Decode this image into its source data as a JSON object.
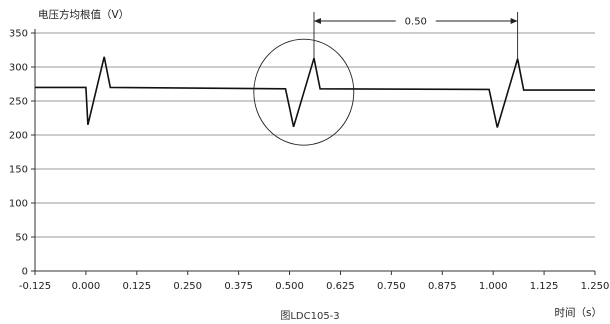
{
  "chart_data": {
    "type": "line",
    "ylabel": "电压方均根值（V）",
    "xlabel": "时间（s）",
    "caption": "图LDC105-3",
    "xlim": [
      -0.125,
      1.25
    ],
    "ylim": [
      0,
      350
    ],
    "x_ticks": [
      -0.125,
      0.0,
      0.125,
      0.25,
      0.375,
      0.5,
      0.625,
      0.75,
      0.875,
      1.0,
      1.125,
      1.25
    ],
    "x_tick_labels": [
      "-0.125",
      "0.000",
      "0.125",
      "0.250",
      "0.375",
      "0.500",
      "0.625",
      "0.750",
      "0.875",
      "1.000",
      "1.125",
      "1.250"
    ],
    "y_ticks": [
      0,
      50,
      100,
      150,
      200,
      250,
      300,
      350
    ],
    "y_tick_labels": [
      "0",
      "50",
      "100",
      "150",
      "200",
      "250",
      "300",
      "350"
    ],
    "grid": "horizontal",
    "series": [
      {
        "color": "#111111",
        "x": [
          -0.125,
          0.0,
          0.005,
          0.045,
          0.06,
          0.49,
          0.51,
          0.56,
          0.575,
          0.99,
          1.01,
          1.06,
          1.075,
          1.25
        ],
        "y": [
          270,
          270,
          215,
          315,
          270,
          268,
          212,
          313,
          268,
          267,
          211,
          312,
          266,
          266
        ]
      }
    ],
    "annotation": {
      "label": "0.50",
      "x_start": 0.56,
      "x_end": 1.06,
      "circle_center": [
        0.535,
        263
      ]
    }
  }
}
